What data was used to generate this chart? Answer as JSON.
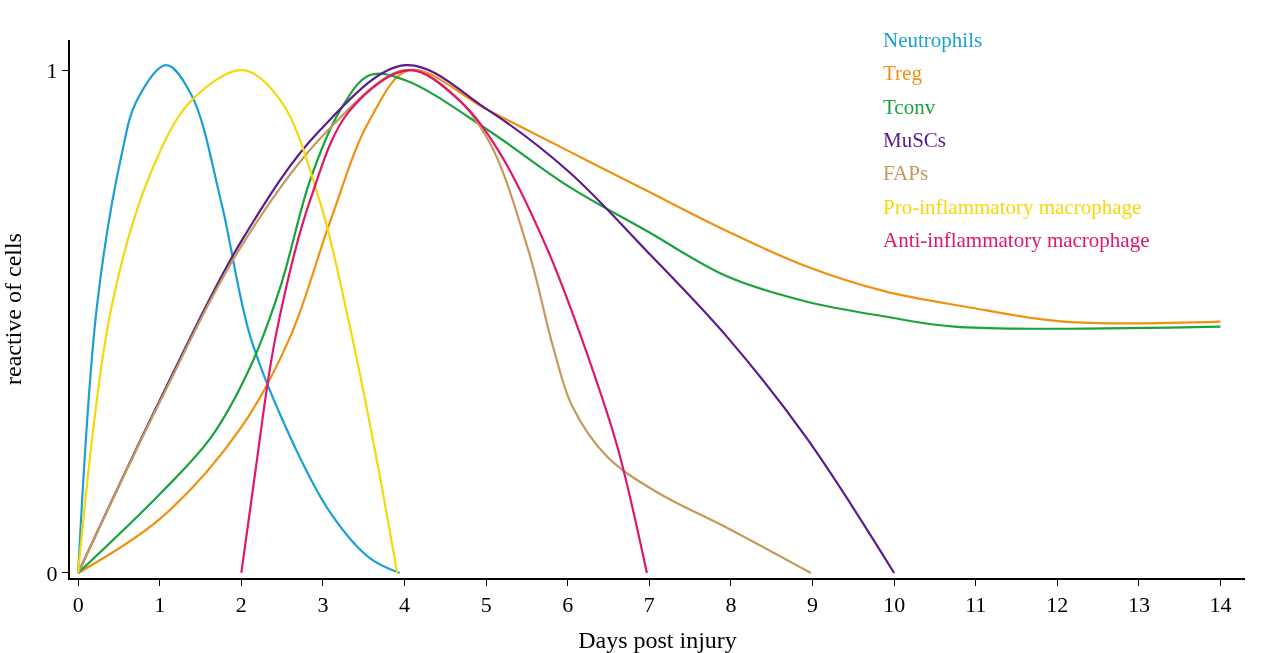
{
  "chart_data": {
    "type": "line",
    "xlabel": "Days post injury",
    "ylabel": "reactive of cells",
    "xlim": [
      -0.1,
      14.3
    ],
    "ylim": [
      -0.01,
      1.06
    ],
    "xticks": [
      0,
      1,
      2,
      3,
      4,
      5,
      6,
      7,
      8,
      9,
      10,
      11,
      12,
      13,
      14
    ],
    "yticks": [
      0,
      1
    ],
    "grid": false,
    "legend": "top right",
    "marker": "none",
    "line_style": "solid",
    "series": [
      {
        "name": "Neutrophils",
        "color": "#1a9fd6",
        "x": [
          0,
          0.23,
          0.53,
          0.72,
          1.08,
          1.39,
          1.75,
          2.11,
          2.6,
          3.09,
          3.57,
          3.94
        ],
        "values": [
          0,
          0.53,
          0.83,
          0.94,
          1.01,
          0.95,
          0.74,
          0.47,
          0.27,
          0.12,
          0.03,
          0
        ]
      },
      {
        "name": "Treg",
        "color": "#f0900f",
        "x": [
          0,
          1.02,
          2,
          2.6,
          3.09,
          3.57,
          4.06,
          5.03,
          6,
          6.97,
          7.95,
          8.92,
          9.89,
          10.86,
          12.08,
          14
        ],
        "values": [
          0,
          0.11,
          0.29,
          0.47,
          0.7,
          0.9,
          1,
          0.92,
          0.84,
          0.76,
          0.68,
          0.61,
          0.56,
          0.53,
          0.5,
          0.5
        ]
      },
      {
        "name": "Tconv",
        "color": "#1aa33c",
        "x": [
          0,
          1.02,
          1.63,
          2.11,
          2.48,
          2.84,
          3.21,
          3.57,
          4.01,
          5.03,
          6,
          6.97,
          7.95,
          8.92,
          9.89,
          10.74,
          14
        ],
        "values": [
          0,
          0.16,
          0.27,
          0.41,
          0.57,
          0.78,
          0.92,
          0.99,
          0.98,
          0.88,
          0.77,
          0.68,
          0.59,
          0.54,
          0.51,
          0.49,
          0.49
        ]
      },
      {
        "name": "MuSCs",
        "color": "#5b1a8e",
        "x": [
          0,
          1.02,
          2,
          2.96,
          4.01,
          5.03,
          6,
          6.97,
          7.95,
          8.92,
          10
        ],
        "values": [
          0,
          0.35,
          0.66,
          0.88,
          1.01,
          0.92,
          0.8,
          0.64,
          0.47,
          0.27,
          0
        ]
      },
      {
        "name": "FAPs",
        "color": "#c49a5a",
        "x": [
          0,
          1,
          2,
          3,
          4,
          4.54,
          5.03,
          5.52,
          5.82,
          6.06,
          6.49,
          7.1,
          7.95,
          8.98
        ],
        "values": [
          0,
          0.34,
          0.65,
          0.87,
          1,
          0.96,
          0.86,
          0.64,
          0.45,
          0.33,
          0.23,
          0.16,
          0.09,
          0
        ]
      },
      {
        "name": "Pro-inflammatory macrophage",
        "color": "#f5d80a",
        "x": [
          0,
          0.41,
          0.9,
          1.39,
          2.02,
          2.48,
          2.96,
          3.33,
          3.63,
          3.91
        ],
        "values": [
          0,
          0.53,
          0.8,
          0.94,
          1,
          0.94,
          0.74,
          0.49,
          0.25,
          0
        ]
      },
      {
        "name": "Anti-inflammatory macrophage",
        "color": "#e0156b",
        "x": [
          2,
          2.17,
          2.42,
          2.84,
          3.33,
          4.06,
          4.67,
          5.15,
          5.76,
          6.25,
          6.61,
          6.97
        ],
        "values": [
          0,
          0.2,
          0.47,
          0.74,
          0.92,
          1,
          0.94,
          0.84,
          0.64,
          0.43,
          0.25,
          0
        ]
      }
    ]
  }
}
